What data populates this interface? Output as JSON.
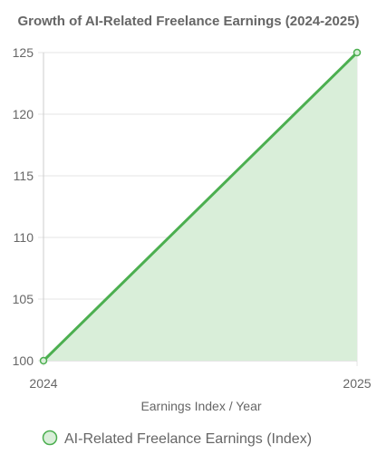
{
  "chart_data": {
    "type": "area",
    "title": "Growth of AI-Related Freelance Earnings (2024-2025)",
    "xlabel": "Earnings Index / Year",
    "ylabel": "",
    "x": [
      "2024",
      "2025"
    ],
    "series": [
      {
        "name": "AI-Related Freelance Earnings (Index)",
        "values": [
          100,
          125
        ]
      }
    ],
    "ylim": [
      100,
      125
    ],
    "yticks": [
      100,
      105,
      110,
      115,
      120,
      125
    ],
    "grid": true,
    "legend": "bottom",
    "colors": {
      "line": "#4caf50",
      "fill": "#d9eed9",
      "grid": "#e5e5e5",
      "text": "#666666"
    }
  }
}
